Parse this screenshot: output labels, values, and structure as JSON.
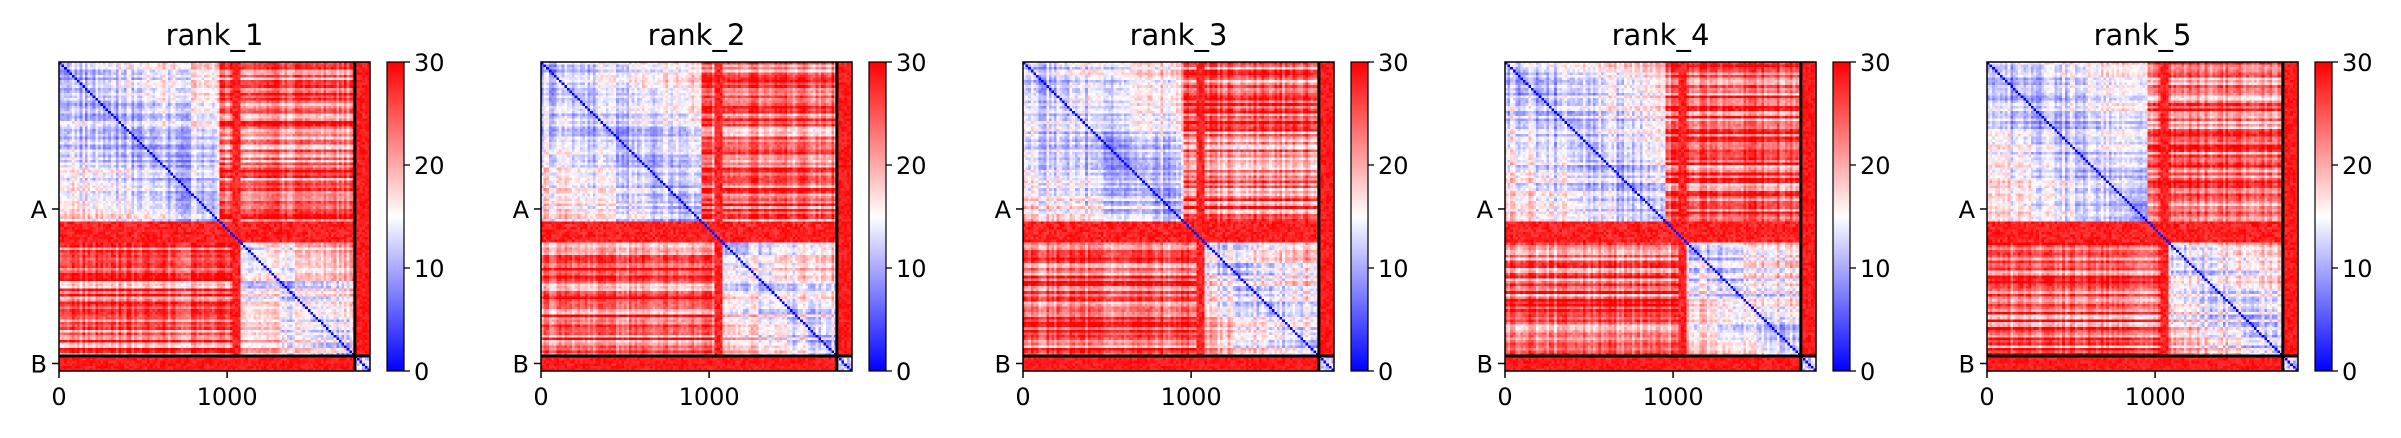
{
  "chart_data": [
    {
      "type": "heatmap",
      "title": "rank_1",
      "xticks": [
        "0",
        "1000"
      ],
      "xtick_values": [
        0,
        1000
      ],
      "yticks": [
        "A",
        "B"
      ],
      "xlim": [
        0,
        1850
      ],
      "chain_break": 1760,
      "colorbar": {
        "ticks": [
          "0",
          "10",
          "20",
          "30"
        ],
        "tick_values": [
          0,
          10,
          20,
          30
        ],
        "range": [
          0,
          30
        ]
      },
      "colormap": [
        "#0000ff",
        "#ffffff",
        "#ff0000"
      ],
      "grid": false
    },
    {
      "type": "heatmap",
      "title": "rank_2",
      "xticks": [
        "0",
        "1000"
      ],
      "xtick_values": [
        0,
        1000
      ],
      "yticks": [
        "A",
        "B"
      ],
      "xlim": [
        0,
        1850
      ],
      "chain_break": 1760,
      "colorbar": {
        "ticks": [
          "0",
          "10",
          "20",
          "30"
        ],
        "tick_values": [
          0,
          10,
          20,
          30
        ],
        "range": [
          0,
          30
        ]
      },
      "colormap": [
        "#0000ff",
        "#ffffff",
        "#ff0000"
      ],
      "grid": false
    },
    {
      "type": "heatmap",
      "title": "rank_3",
      "xticks": [
        "0",
        "1000"
      ],
      "xtick_values": [
        0,
        1000
      ],
      "yticks": [
        "A",
        "B"
      ],
      "xlim": [
        0,
        1850
      ],
      "chain_break": 1760,
      "colorbar": {
        "ticks": [
          "0",
          "10",
          "20",
          "30"
        ],
        "tick_values": [
          0,
          10,
          20,
          30
        ],
        "range": [
          0,
          30
        ]
      },
      "colormap": [
        "#0000ff",
        "#ffffff",
        "#ff0000"
      ],
      "grid": false
    },
    {
      "type": "heatmap",
      "title": "rank_4",
      "xticks": [
        "0",
        "1000"
      ],
      "xtick_values": [
        0,
        1000
      ],
      "yticks": [
        "A",
        "B"
      ],
      "xlim": [
        0,
        1850
      ],
      "chain_break": 1760,
      "colorbar": {
        "ticks": [
          "0",
          "10",
          "20",
          "30"
        ],
        "tick_values": [
          0,
          10,
          20,
          30
        ],
        "range": [
          0,
          30
        ]
      },
      "colormap": [
        "#0000ff",
        "#ffffff",
        "#ff0000"
      ],
      "grid": false
    },
    {
      "type": "heatmap",
      "title": "rank_5",
      "xticks": [
        "0",
        "1000"
      ],
      "xtick_values": [
        0,
        1000
      ],
      "yticks": [
        "A",
        "B"
      ],
      "xlim": [
        0,
        1850
      ],
      "chain_break": 1760,
      "colorbar": {
        "ticks": [
          "0",
          "10",
          "20",
          "30"
        ],
        "tick_values": [
          0,
          10,
          20,
          30
        ],
        "range": [
          0,
          30
        ]
      },
      "colormap": [
        "#0000ff",
        "#ffffff",
        "#ff0000"
      ],
      "grid": false
    }
  ]
}
